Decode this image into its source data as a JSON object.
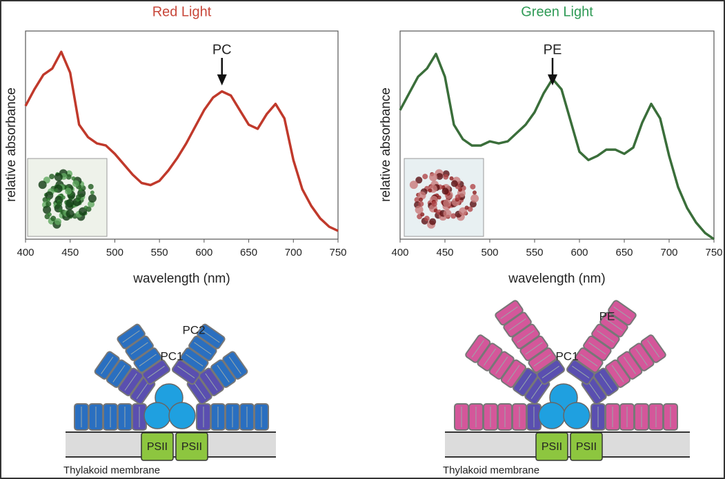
{
  "chart_data": [
    {
      "type": "line",
      "title": "Red Light",
      "title_color": "#c8473a",
      "color": "#c0392b",
      "x_label": "wavelength (nm)",
      "y_label": "relative absorbance",
      "x": [
        400,
        410,
        420,
        430,
        440,
        450,
        460,
        470,
        480,
        490,
        500,
        510,
        520,
        530,
        540,
        550,
        560,
        570,
        580,
        590,
        600,
        610,
        620,
        630,
        640,
        650,
        660,
        670,
        680,
        690,
        700,
        710,
        720,
        730,
        740,
        750
      ],
      "values": [
        0.64,
        0.72,
        0.79,
        0.82,
        0.9,
        0.8,
        0.55,
        0.49,
        0.46,
        0.45,
        0.41,
        0.36,
        0.31,
        0.27,
        0.26,
        0.28,
        0.33,
        0.39,
        0.46,
        0.54,
        0.62,
        0.68,
        0.71,
        0.69,
        0.62,
        0.55,
        0.53,
        0.6,
        0.65,
        0.58,
        0.38,
        0.24,
        0.16,
        0.1,
        0.06,
        0.04
      ],
      "xlim": [
        400,
        750
      ],
      "xticks": [
        400,
        450,
        500,
        550,
        600,
        650,
        700,
        750
      ],
      "ylim": [
        0,
        1
      ],
      "annotation": {
        "text": "PC",
        "x": 620
      }
    },
    {
      "type": "line",
      "title": "Green Light",
      "title_color": "#2e9a55",
      "color": "#3a6e3a",
      "x_label": "wavelength (nm)",
      "y_label": "relative absorbance",
      "x": [
        400,
        410,
        420,
        430,
        440,
        450,
        460,
        470,
        480,
        490,
        500,
        510,
        520,
        530,
        540,
        550,
        560,
        570,
        580,
        590,
        600,
        610,
        620,
        630,
        640,
        650,
        660,
        670,
        680,
        690,
        700,
        710,
        720,
        730,
        740,
        750
      ],
      "values": [
        0.62,
        0.7,
        0.78,
        0.82,
        0.89,
        0.78,
        0.55,
        0.48,
        0.45,
        0.45,
        0.47,
        0.46,
        0.47,
        0.51,
        0.55,
        0.61,
        0.7,
        0.77,
        0.72,
        0.57,
        0.42,
        0.38,
        0.4,
        0.43,
        0.43,
        0.41,
        0.44,
        0.56,
        0.65,
        0.58,
        0.4,
        0.25,
        0.15,
        0.08,
        0.03,
        0
      ],
      "xlim": [
        400,
        750
      ],
      "xticks": [
        400,
        450,
        500,
        550,
        600,
        650,
        700,
        750
      ],
      "ylim": [
        0,
        1
      ],
      "annotation": {
        "text": "PE",
        "x": 570
      }
    }
  ],
  "diagrams": [
    {
      "labels": [
        "PC2",
        "PC1"
      ],
      "psii": [
        "PSII",
        "PSII"
      ],
      "membrane": "Thylakoid membrane"
    },
    {
      "labels": [
        "PE",
        "PC1"
      ],
      "psii": [
        "PSII",
        "PSII"
      ],
      "membrane": "Thylakoid membrane"
    }
  ]
}
